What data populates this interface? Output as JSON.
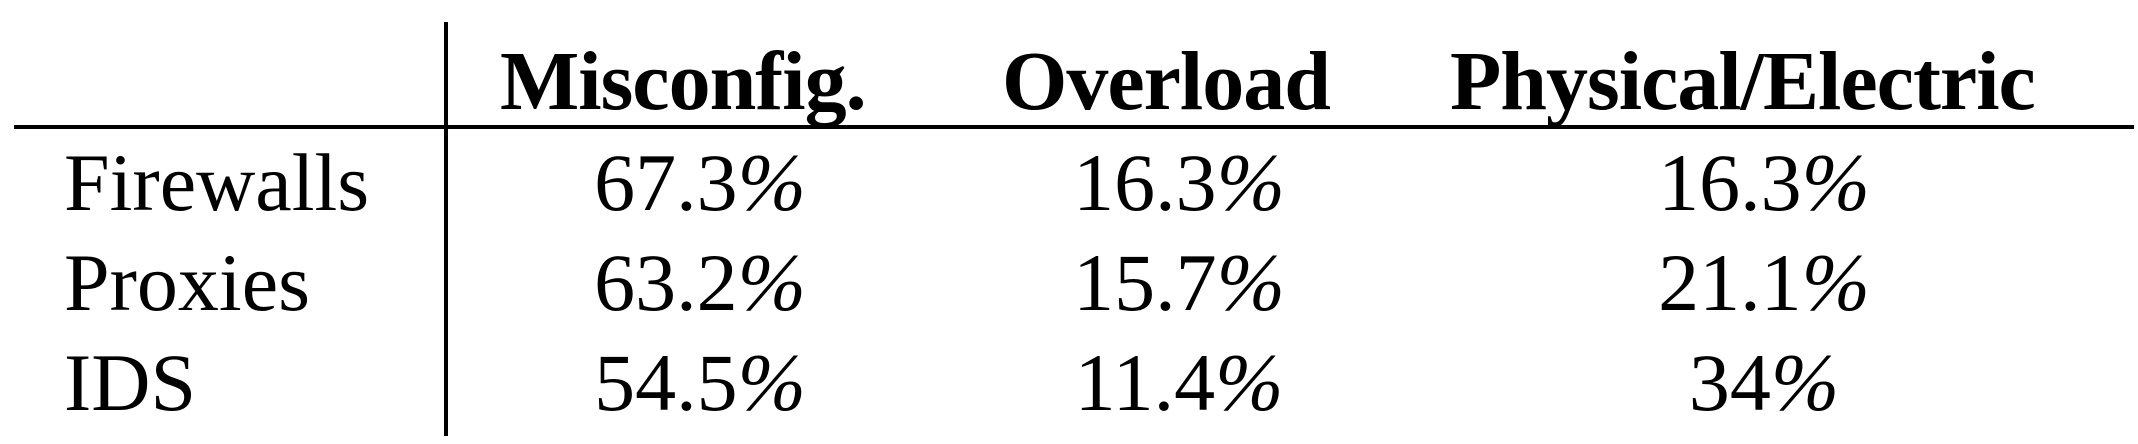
{
  "table": {
    "columns": [
      "Misconfig.",
      "Overload",
      "Physical/Electric"
    ],
    "rows": [
      {
        "label": "Firewalls",
        "values": [
          "67.3",
          "16.3",
          "16.3"
        ]
      },
      {
        "label": "Proxies",
        "values": [
          "63.2",
          "15.7",
          "21.1"
        ]
      },
      {
        "label": "IDS",
        "values": [
          "54.5",
          "11.4",
          "34"
        ]
      }
    ],
    "unit": "%"
  }
}
